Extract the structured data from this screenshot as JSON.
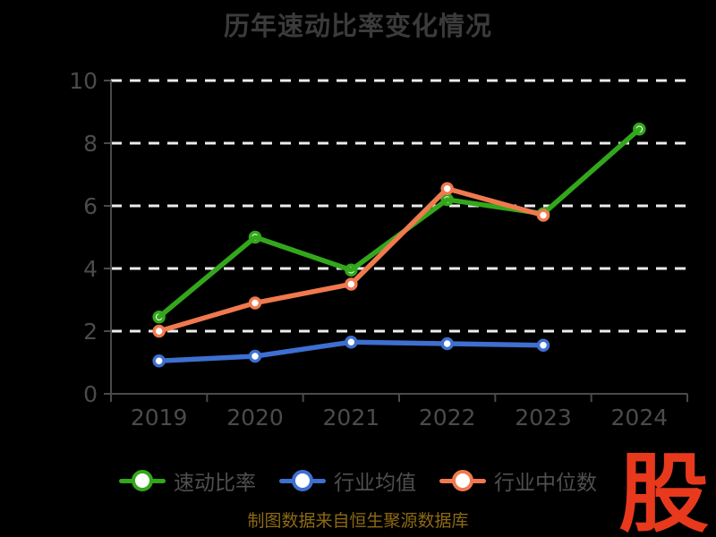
{
  "chart_data": {
    "type": "line",
    "title": "历年速动比率变化情况",
    "categories": [
      "2019",
      "2020",
      "2021",
      "2022",
      "2023",
      "2024"
    ],
    "series": [
      {
        "name": "速动比率",
        "color": "#33a71c",
        "values": [
          2.45,
          5.0,
          3.95,
          6.2,
          5.75,
          8.45
        ],
        "marker": "circle-under-line"
      },
      {
        "name": "行业均值",
        "color": "#3e6fd1",
        "values": [
          1.05,
          1.2,
          1.65,
          1.6,
          1.55,
          null
        ],
        "marker": "circle-over-line"
      },
      {
        "name": "行业中位数",
        "color": "#f0794e",
        "values": [
          2.0,
          2.9,
          3.5,
          6.55,
          5.7,
          null
        ],
        "marker": "circle-over-line"
      }
    ],
    "xlabel": "",
    "ylabel": "",
    "ylim": [
      0,
      10
    ],
    "yticks": [
      0,
      2,
      4,
      6,
      8,
      10
    ],
    "grid": "horizontal-dashed",
    "gridline_color": "#ececec",
    "axis_color": "#4a4a4a",
    "tick_label_color": "#4b4b4b",
    "legend_position": "bottom",
    "background_color": "#000000",
    "marker_fill": "#ffffff"
  },
  "footer": {
    "text": "制图数据来自恒生聚源数据库",
    "color": "#8c6914"
  },
  "logo": {
    "text": "股",
    "color": "#e8391d"
  }
}
